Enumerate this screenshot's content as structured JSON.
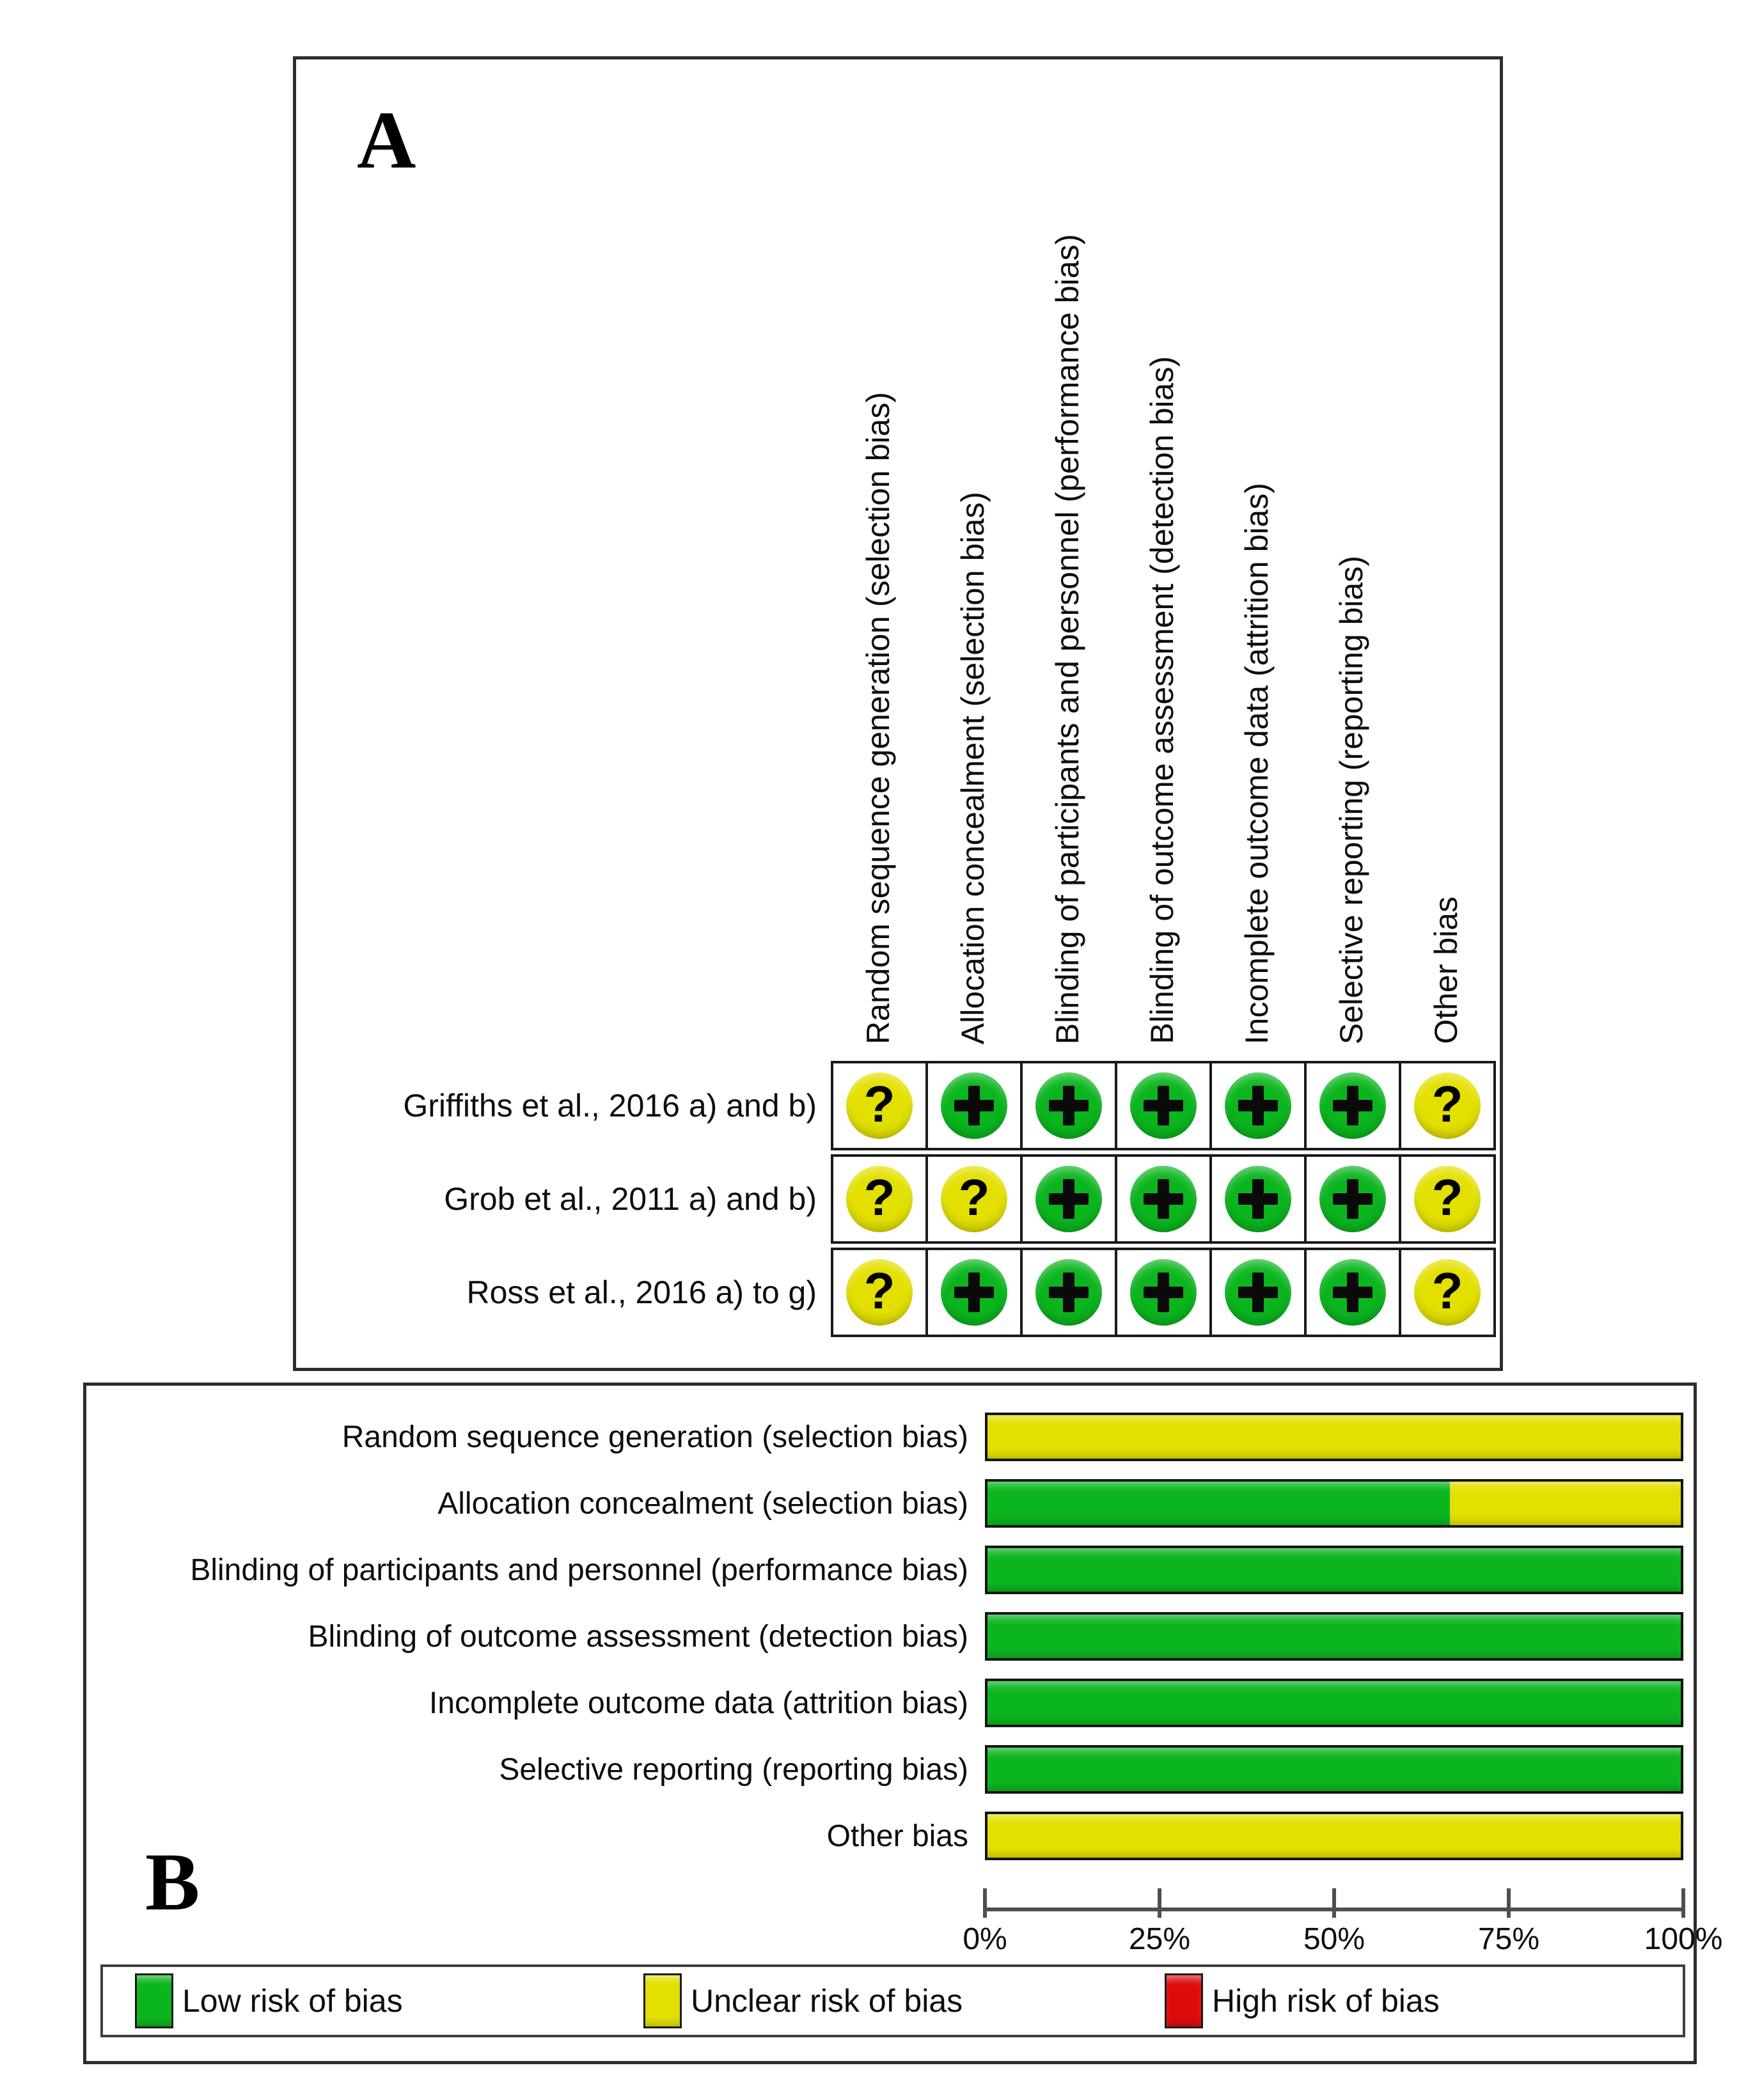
{
  "colors": {
    "low": "#0bb51e",
    "unclear": "#e3e000",
    "high": "#dd0d0d"
  },
  "panel_a": {
    "label": "A",
    "columns": [
      "Random sequence generation (selection bias)",
      "Allocation concealment (selection bias)",
      "Blinding of participants and personnel (performance bias)",
      "Blinding of outcome assessment (detection bias)",
      "Incomplete outcome data (attrition bias)",
      "Selective reporting (reporting bias)",
      "Other bias"
    ],
    "symbols": {
      "low": "+",
      "unclear": "?",
      "high": "-"
    },
    "rows": [
      {
        "study": "Griffiths et al., 2016 a) and b)",
        "judgements": [
          "unclear",
          "low",
          "low",
          "low",
          "low",
          "low",
          "unclear"
        ]
      },
      {
        "study": "Grob et al., 2011 a) and b)",
        "judgements": [
          "unclear",
          "unclear",
          "low",
          "low",
          "low",
          "low",
          "unclear"
        ]
      },
      {
        "study": "Ross et al., 2016 a) to g)",
        "judgements": [
          "unclear",
          "low",
          "low",
          "low",
          "low",
          "low",
          "unclear"
        ]
      }
    ]
  },
  "panel_b": {
    "label": "B",
    "bars": [
      {
        "label": "Random sequence generation (selection bias)",
        "low": 0,
        "unclear": 100,
        "high": 0
      },
      {
        "label": "Allocation concealment (selection bias)",
        "low": 66.7,
        "unclear": 33.3,
        "high": 0
      },
      {
        "label": "Blinding of participants and personnel (performance bias)",
        "low": 100,
        "unclear": 0,
        "high": 0
      },
      {
        "label": "Blinding of outcome assessment (detection bias)",
        "low": 100,
        "unclear": 0,
        "high": 0
      },
      {
        "label": "Incomplete outcome data (attrition bias)",
        "low": 100,
        "unclear": 0,
        "high": 0
      },
      {
        "label": "Selective reporting (reporting bias)",
        "low": 100,
        "unclear": 0,
        "high": 0
      },
      {
        "label": "Other bias",
        "low": 0,
        "unclear": 100,
        "high": 0
      }
    ],
    "axis_ticks": [
      {
        "label": "0%",
        "pct": 0
      },
      {
        "label": "25%",
        "pct": 25
      },
      {
        "label": "50%",
        "pct": 50
      },
      {
        "label": "75%",
        "pct": 75
      },
      {
        "label": "100%",
        "pct": 100
      }
    ],
    "legend": [
      {
        "label": "Low risk of bias",
        "risk": "low"
      },
      {
        "label": "Unclear risk of bias",
        "risk": "unclear"
      },
      {
        "label": "High risk of bias",
        "risk": "high"
      }
    ]
  },
  "chart_data": [
    {
      "type": "table",
      "title": "A: Risk of bias summary",
      "columns": [
        "Random sequence generation (selection bias)",
        "Allocation concealment (selection bias)",
        "Blinding of participants and personnel (performance bias)",
        "Blinding of outcome assessment (detection bias)",
        "Incomplete outcome data (attrition bias)",
        "Selective reporting (reporting bias)",
        "Other bias"
      ],
      "rows": [
        "Griffiths et al., 2016 a) and b)",
        "Grob et al., 2011 a) and b)",
        "Ross et al., 2016 a) to g)"
      ],
      "cells": [
        [
          "?",
          "+",
          "+",
          "+",
          "+",
          "+",
          "?"
        ],
        [
          "?",
          "?",
          "+",
          "+",
          "+",
          "+",
          "?"
        ],
        [
          "?",
          "+",
          "+",
          "+",
          "+",
          "+",
          "?"
        ]
      ]
    },
    {
      "type": "bar",
      "title": "B: Risk of bias graph (stacked horizontal, % of studies)",
      "categories": [
        "Random sequence generation (selection bias)",
        "Allocation concealment (selection bias)",
        "Blinding of participants and personnel (performance bias)",
        "Blinding of outcome assessment (detection bias)",
        "Incomplete outcome data (attrition bias)",
        "Selective reporting (reporting bias)",
        "Other bias"
      ],
      "series": [
        {
          "name": "Low risk of bias",
          "values": [
            0,
            66.7,
            100,
            100,
            100,
            100,
            0
          ]
        },
        {
          "name": "Unclear risk of bias",
          "values": [
            100,
            33.3,
            0,
            0,
            0,
            0,
            100
          ]
        },
        {
          "name": "High risk of bias",
          "values": [
            0,
            0,
            0,
            0,
            0,
            0,
            0
          ]
        }
      ],
      "xlabel": "",
      "ylabel": "",
      "xlim": [
        0,
        100
      ],
      "tick_labels": [
        "0%",
        "25%",
        "50%",
        "75%",
        "100%"
      ],
      "legend_position": "bottom",
      "grid": false
    }
  ]
}
